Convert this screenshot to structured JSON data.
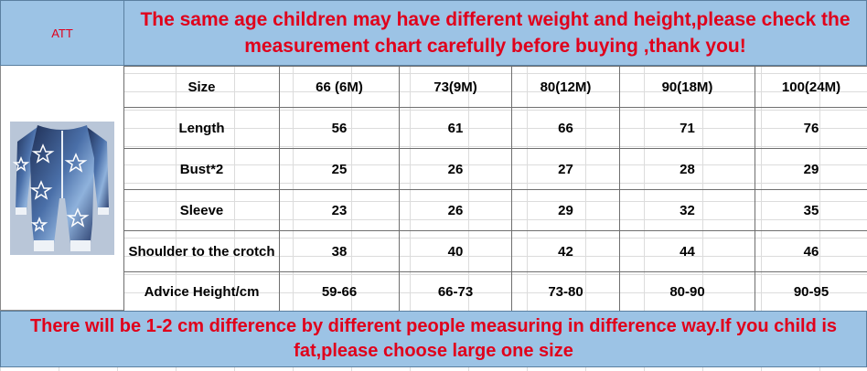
{
  "header": {
    "brand": "ATT",
    "notice": "The same age children may have different weight and height,please check the measurement chart carefully before buying ,thank you!"
  },
  "product_image": {
    "icon": "star-print-romper-image"
  },
  "size_chart": {
    "rows": [
      [
        "Size",
        "66 (6M)",
        "73(9M)",
        "80(12M)",
        "90(18M)",
        "100(24M)"
      ],
      [
        "Length",
        "56",
        "61",
        "66",
        "71",
        "76"
      ],
      [
        "Bust*2",
        "25",
        "26",
        "27",
        "28",
        "29"
      ],
      [
        "Sleeve",
        "23",
        "26",
        "29",
        "32",
        "35"
      ],
      [
        "Shoulder to the crotch",
        "38",
        "40",
        "42",
        "44",
        "46"
      ],
      [
        "Advice Height/cm",
        "59-66",
        "66-73",
        "73-80",
        "80-90",
        "90-95"
      ]
    ]
  },
  "footer": {
    "note": "There will be 1-2 cm difference by different people measuring in difference way.If you child is fat,please choose large one size"
  },
  "colors": {
    "band": "#9cc3e5",
    "text_red": "#e0001b"
  }
}
